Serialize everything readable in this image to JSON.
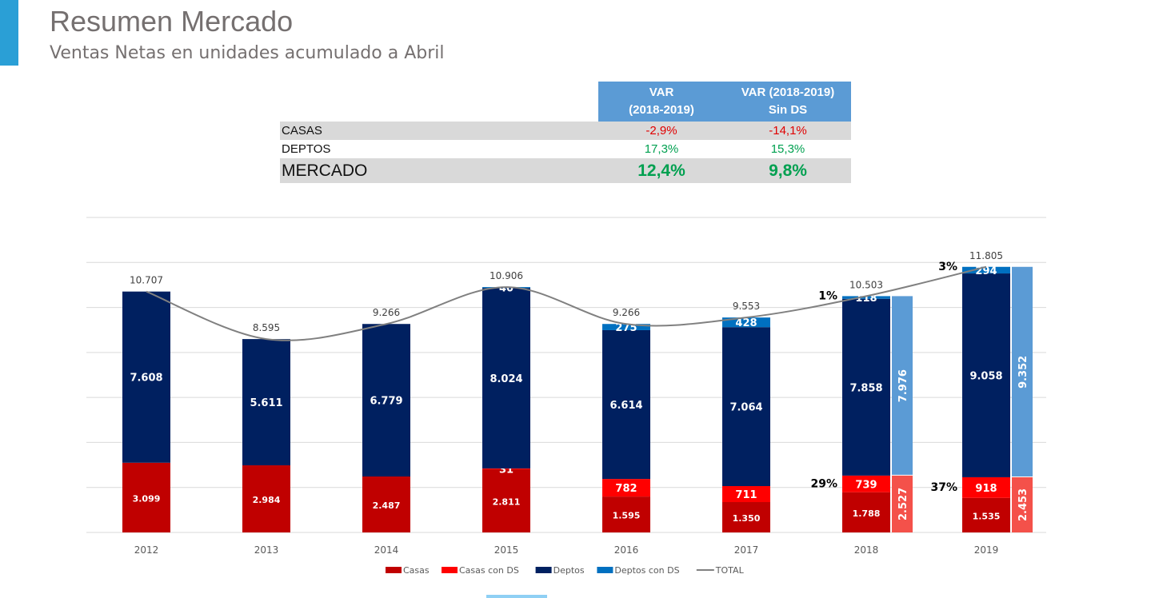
{
  "header": {
    "title": "Resumen Mercado",
    "subtitle": "Ventas Netas en unidades acumulado a Abril"
  },
  "table": {
    "columns": [
      "VAR\n(2018-2019)",
      "VAR (2018-2019)\nSin DS"
    ],
    "col1_line1": "VAR",
    "col1_line2": "(2018-2019)",
    "col2_line1": "VAR (2018-2019)",
    "col2_line2": "Sin DS",
    "rows": [
      {
        "label": "CASAS",
        "var": "-2,9%",
        "var_sin_ds": "-14,1%"
      },
      {
        "label": "DEPTOS",
        "var": "17,3%",
        "var_sin_ds": "15,3%"
      },
      {
        "label": "MERCADO",
        "var": "12,4%",
        "var_sin_ds": "9,8%"
      }
    ],
    "colors": {
      "negative": "#e00000",
      "positive": "#00a050",
      "header": "#5b9bd5"
    }
  },
  "chart_data": {
    "type": "bar",
    "stacked": true,
    "categories": [
      "2012",
      "2013",
      "2014",
      "2015",
      "2016",
      "2017",
      "2018",
      "2019"
    ],
    "ylim": [
      0,
      14000
    ],
    "grid": true,
    "y_axis_labels_visible": false,
    "legend_position": "bottom",
    "series": [
      {
        "name": "Casas",
        "color": "#c00000",
        "values": [
          3099,
          2984,
          2487,
          2811,
          1595,
          1350,
          1788,
          1535
        ],
        "labels": [
          "3.099",
          "2.984",
          "2.487",
          "2.811",
          "1.595",
          "1.350",
          "1.788",
          "1.535"
        ]
      },
      {
        "name": "Casas con DS",
        "color": "#ff0000",
        "values": [
          0,
          0,
          0,
          31,
          782,
          711,
          739,
          918
        ],
        "labels": [
          "",
          "",
          "",
          "31",
          "782",
          "711",
          "739",
          "918"
        ]
      },
      {
        "name": "Deptos",
        "color": "#002060",
        "values": [
          7608,
          5611,
          6779,
          8024,
          6614,
          7064,
          7858,
          9058
        ],
        "labels": [
          "7.608",
          "5.611",
          "6.779",
          "8.024",
          "6.614",
          "7.064",
          "7.858",
          "9.058"
        ]
      },
      {
        "name": "Deptos con DS",
        "color": "#0070c0",
        "values": [
          0,
          0,
          0,
          40,
          275,
          428,
          118,
          294
        ],
        "labels": [
          "",
          "",
          "",
          "40",
          "275",
          "428",
          "118",
          "294"
        ]
      },
      {
        "name": "TOTAL",
        "type": "line",
        "color": "#808080",
        "values": [
          10707,
          8595,
          9266,
          10906,
          9266,
          9553,
          10503,
          11805
        ],
        "labels": [
          "10.707",
          "8.595",
          "9.266",
          "10.906",
          "9.266",
          "9.553",
          "10.503",
          "11.805"
        ]
      }
    ],
    "sin_ds_bars": [
      {
        "category": "2018",
        "casas": 2527,
        "deptos": 7976,
        "casas_label": "2.527",
        "deptos_label": "7.976"
      },
      {
        "category": "2019",
        "casas": 2453,
        "deptos": 9352,
        "casas_label": "2.453",
        "deptos_label": "9.352"
      }
    ],
    "sin_ds_colors": {
      "casas": "#f4514a",
      "deptos": "#5b9bd5"
    },
    "annotations": [
      {
        "category": "2018",
        "text": "29%",
        "target": "casas"
      },
      {
        "category": "2018",
        "text": "1%",
        "target": "deptos"
      },
      {
        "category": "2019",
        "text": "37%",
        "target": "casas"
      },
      {
        "category": "2019",
        "text": "3%",
        "target": "deptos"
      }
    ]
  }
}
